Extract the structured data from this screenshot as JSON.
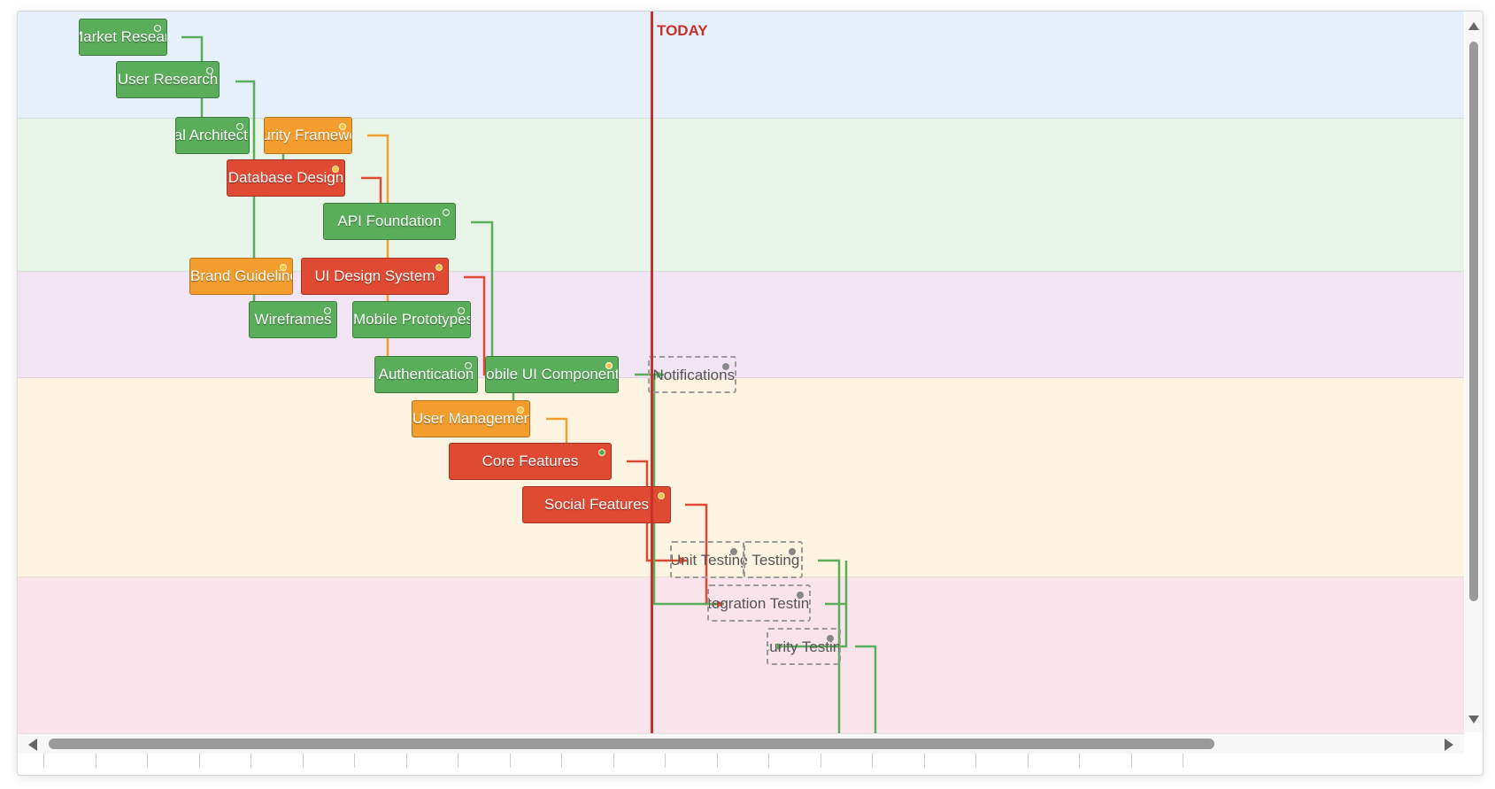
{
  "today_label": "TODAY",
  "colors": {
    "done": "#5aad5a",
    "in_progress": "#f29d2e",
    "critical": "#e04a33",
    "today": "#c9302c",
    "planned_border": "#9a9a9a"
  },
  "swimlanes": [
    "lane-research",
    "lane-architecture",
    "lane-design",
    "lane-development",
    "lane-testing"
  ],
  "tasks": [
    {
      "label": "Market Research",
      "status": "done"
    },
    {
      "label": "User Research",
      "status": "done"
    },
    {
      "label": "Technical Architecture",
      "status": "done"
    },
    {
      "label": "Security Framework",
      "status": "in_progress"
    },
    {
      "label": "Database Design",
      "status": "critical"
    },
    {
      "label": "API Foundation",
      "status": "done"
    },
    {
      "label": "Brand Guidelines",
      "status": "in_progress"
    },
    {
      "label": "UI Design System",
      "status": "critical"
    },
    {
      "label": "Wireframes",
      "status": "done"
    },
    {
      "label": "Mobile Prototypes",
      "status": "done"
    },
    {
      "label": "Authentication",
      "status": "done"
    },
    {
      "label": "Mobile UI Components",
      "status": "done"
    },
    {
      "label": "Push Notifications",
      "status": "planned"
    },
    {
      "label": "User Management",
      "status": "in_progress"
    },
    {
      "label": "Core Features",
      "status": "critical"
    },
    {
      "label": "Social Features",
      "status": "critical"
    },
    {
      "label": "Unit Testing",
      "status": "planned"
    },
    {
      "label": "Performance Testing",
      "status": "planned"
    },
    {
      "label": "Integration Testing",
      "status": "planned"
    },
    {
      "label": "Security Testing",
      "status": "planned"
    }
  ]
}
